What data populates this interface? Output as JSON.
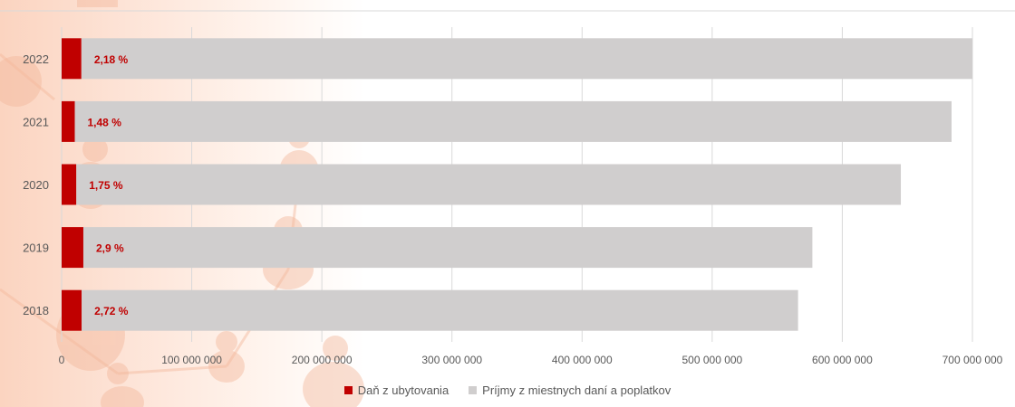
{
  "chart_data": {
    "type": "bar",
    "orientation": "horizontal",
    "stacked": true,
    "categories": [
      "2022",
      "2021",
      "2020",
      "2019",
      "2018"
    ],
    "series": [
      {
        "name": "Daň z ubytovania",
        "color": "#c00000",
        "values": [
          15200000,
          10100000,
          11300000,
          16700000,
          15400000
        ]
      },
      {
        "name": "Príjmy z miestnych daní a poplatkov",
        "color": "#d0cece",
        "values": [
          684800000,
          673900000,
          633700000,
          560300000,
          550600000
        ]
      }
    ],
    "data_labels": [
      "2,18 %",
      "1,48 %",
      "1,75 %",
      "2,9 %",
      "2,72 %"
    ],
    "xlim": [
      0,
      700000000
    ],
    "x_ticks": [
      "0",
      "100 000 000",
      "200 000 000",
      "300 000 000",
      "400 000 000",
      "500 000 000",
      "600 000 000",
      "700 000 000"
    ],
    "grid": true,
    "legend_position": "bottom"
  }
}
